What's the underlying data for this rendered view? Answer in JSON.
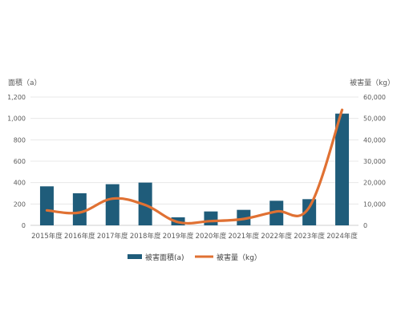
{
  "chart_data": {
    "type": "bar",
    "categories": [
      "2015年度",
      "2016年度",
      "2017年度",
      "2018年度",
      "2019年度",
      "2020年度",
      "2021年度",
      "2022年度",
      "2023年度",
      "2024年度"
    ],
    "series": [
      {
        "name": "被害面積(a)",
        "type": "bar",
        "axis": "left",
        "color": "#1F5C7A",
        "values": [
          365,
          300,
          385,
          400,
          75,
          130,
          145,
          230,
          245,
          1045
        ]
      },
      {
        "name": "被害量（kg）",
        "type": "line",
        "axis": "right",
        "color": "#E07133",
        "values": [
          7000,
          6000,
          12500,
          9500,
          1500,
          2000,
          3000,
          6500,
          8500,
          54000
        ]
      }
    ],
    "y_left": {
      "label": "面積（a）",
      "ylim": [
        0,
        1200
      ],
      "ticks": [
        "0",
        "200",
        "400",
        "600",
        "800",
        "1,000",
        "1,200"
      ]
    },
    "y_right": {
      "label": "被害量（kg）",
      "ylim": [
        0,
        60000
      ],
      "ticks": [
        "0",
        "10,000",
        "20,000",
        "30,000",
        "40,000",
        "50,000",
        "60,000"
      ]
    },
    "grid": true,
    "legend_position": "bottom"
  }
}
